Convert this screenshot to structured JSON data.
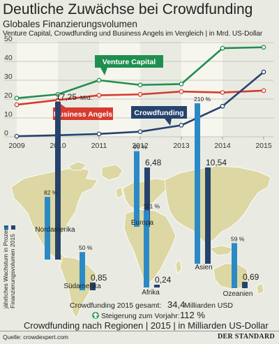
{
  "header": {
    "title": "Deutliche Zuwächse bei Crowdfunding",
    "subtitle": "Globales Finanzierungsvolumen",
    "subtitle2": "Venture Capital, Crowdfunding und Business Angels im Vergleich | in Mrd. US-Dollar"
  },
  "colors": {
    "venture": "#1f8f4f",
    "angels": "#d63b2e",
    "crowd": "#26436d",
    "growth": "#2b8ac6",
    "volume": "#26436d",
    "map": "#ddd7a3",
    "mapStroke": "#ffffff"
  },
  "chart_data": [
    {
      "type": "line",
      "x": [
        2009,
        2010,
        2011,
        2012,
        2013,
        2014,
        2015
      ],
      "ylim": [
        0,
        50
      ],
      "yticks": [
        0,
        10,
        20,
        30,
        40,
        50
      ],
      "grid": true,
      "series": [
        {
          "name": "Venture Capital",
          "key": "venture",
          "values": [
            20.5,
            22.5,
            30,
            27.5,
            28,
            47,
            47.5
          ]
        },
        {
          "name": "Business Angels",
          "key": "angels",
          "values": [
            17,
            19.5,
            22,
            22.5,
            24,
            23.5,
            24.5
          ]
        },
        {
          "name": "Crowdfunding",
          "key": "crowd",
          "values": [
            0.3,
            0.8,
            1.5,
            2.7,
            6.1,
            16.2,
            34.4
          ]
        }
      ]
    },
    {
      "type": "bar",
      "title": "Crowdfunding nach Regionen | 2015 | in Milliarden US-Dollar",
      "categories": [
        "Nordamerika",
        "Südamerika",
        "Europa",
        "Afrika",
        "Asien",
        "Ozeanien"
      ],
      "series": [
        {
          "name": "jährliches Wachstum in Prozent",
          "values": [
            82,
            50,
            99,
            101,
            210,
            59
          ]
        },
        {
          "name": "Finanzierungsvolumen 2015",
          "values": [
            17.25,
            0.85,
            6.48,
            0.24,
            10.54,
            0.69
          ]
        }
      ],
      "pct_labels": [
        "82 %",
        "50 %",
        "99 %",
        "101 %",
        "210 %",
        "59 %"
      ],
      "vol_labels": [
        "17,25",
        "0,85",
        "6,48",
        "0,24",
        "10,54",
        "0,69"
      ],
      "unit": "Mrd.",
      "legend": [
        "jährliches Wachstum in Prozent",
        "Finanzierungsvolumen 2015"
      ]
    }
  ],
  "footer": {
    "total_prefix": "Crowdfunding 2015 gesamt:",
    "total_value": "34,4",
    "total_suffix": "Milliarden USD",
    "growth_prefix": "Steigerung zum Vorjahr:",
    "growth_value": "112 %",
    "source": "Quelle: crowdexpert.com",
    "brand": "DER STANDARD"
  }
}
